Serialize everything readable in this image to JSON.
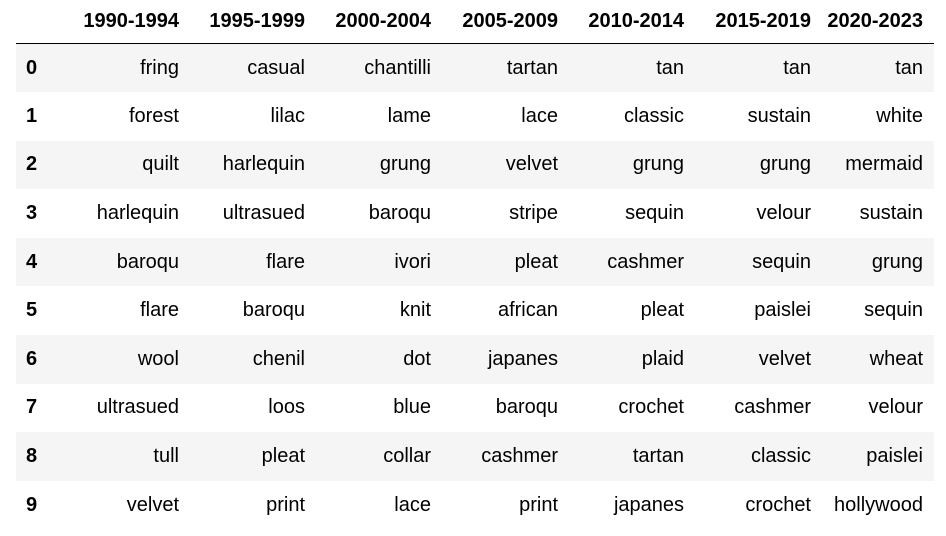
{
  "table": {
    "index_header": "",
    "columns": [
      "1990-1994",
      "1995-1999",
      "2000-2004",
      "2005-2009",
      "2010-2014",
      "2015-2019",
      "2020-2023"
    ],
    "rows": [
      {
        "index": "0",
        "cells": [
          "fring",
          "casual",
          "chantilli",
          "tartan",
          "tan",
          "tan",
          "tan"
        ]
      },
      {
        "index": "1",
        "cells": [
          "forest",
          "lilac",
          "lame",
          "lace",
          "classic",
          "sustain",
          "white"
        ]
      },
      {
        "index": "2",
        "cells": [
          "quilt",
          "harlequin",
          "grung",
          "velvet",
          "grung",
          "grung",
          "mermaid"
        ]
      },
      {
        "index": "3",
        "cells": [
          "harlequin",
          "ultrasued",
          "baroqu",
          "stripe",
          "sequin",
          "velour",
          "sustain"
        ]
      },
      {
        "index": "4",
        "cells": [
          "baroqu",
          "flare",
          "ivori",
          "pleat",
          "cashmer",
          "sequin",
          "grung"
        ]
      },
      {
        "index": "5",
        "cells": [
          "flare",
          "baroqu",
          "knit",
          "african",
          "pleat",
          "paislei",
          "sequin"
        ]
      },
      {
        "index": "6",
        "cells": [
          "wool",
          "chenil",
          "dot",
          "japanes",
          "plaid",
          "velvet",
          "wheat"
        ]
      },
      {
        "index": "7",
        "cells": [
          "ultrasued",
          "loos",
          "blue",
          "baroqu",
          "crochet",
          "cashmer",
          "velour"
        ]
      },
      {
        "index": "8",
        "cells": [
          "tull",
          "pleat",
          "collar",
          "cashmer",
          "tartan",
          "classic",
          "paislei"
        ]
      },
      {
        "index": "9",
        "cells": [
          "velvet",
          "print",
          "lace",
          "print",
          "japanes",
          "crochet",
          "hollywood"
        ]
      }
    ]
  },
  "colors": {
    "stripe": "#f5f5f5",
    "background": "#ffffff",
    "text": "#000000"
  }
}
